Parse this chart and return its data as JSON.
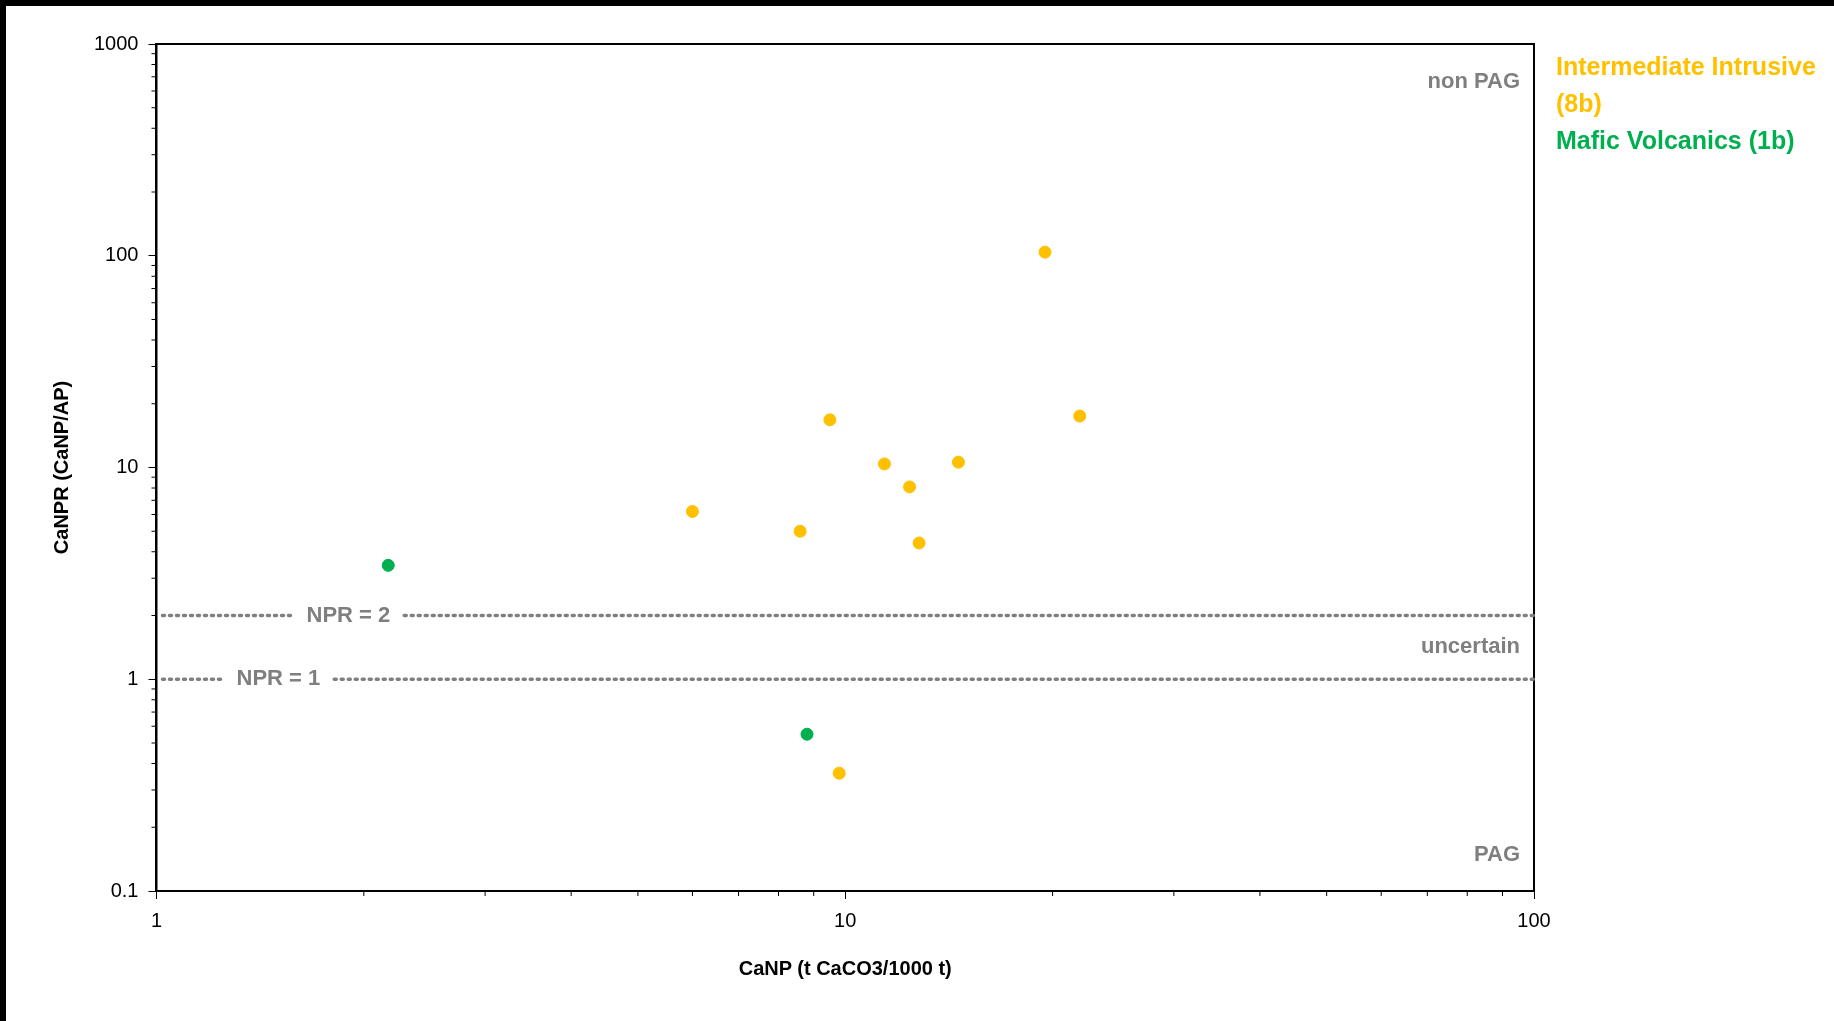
{
  "chart_data": {
    "type": "scatter",
    "xlabel": "CaNP (t CaCO3/1000 t)",
    "ylabel": "CaNPR (CaNP/AP)",
    "log": "xy",
    "xlim": [
      1,
      100
    ],
    "xticks": [
      1,
      10,
      100
    ],
    "ylim": [
      0.1,
      1000
    ],
    "yticks": [
      0.1,
      1,
      10,
      100,
      1000
    ],
    "grid": false,
    "marker": "circle",
    "series": [
      {
        "name": "Intermediate Intrusive (8b)",
        "color": "#ffc000",
        "x": [
          19.5,
          21.9,
          9.5,
          11.4,
          14.6,
          12.4,
          6.0,
          8.6,
          12.8,
          9.8
        ],
        "values": [
          104,
          17.5,
          16.8,
          10.4,
          10.6,
          8.1,
          6.2,
          5.0,
          4.4,
          0.36
        ]
      },
      {
        "name": "Mafic Volcanics (1b)",
        "color": "#00b050",
        "x": [
          2.17,
          8.8
        ],
        "values": [
          3.45,
          0.55
        ]
      }
    ],
    "ref_lines": [
      {
        "axis": "y",
        "value": 2,
        "label": "NPR = 2",
        "color": "#7f7f7f",
        "line_style": "dotted"
      },
      {
        "axis": "y",
        "value": 1,
        "label": "NPR = 1",
        "color": "#7f7f7f",
        "line_style": "dotted"
      }
    ],
    "annotations": [
      "non PAG",
      "uncertain",
      "PAG"
    ]
  }
}
